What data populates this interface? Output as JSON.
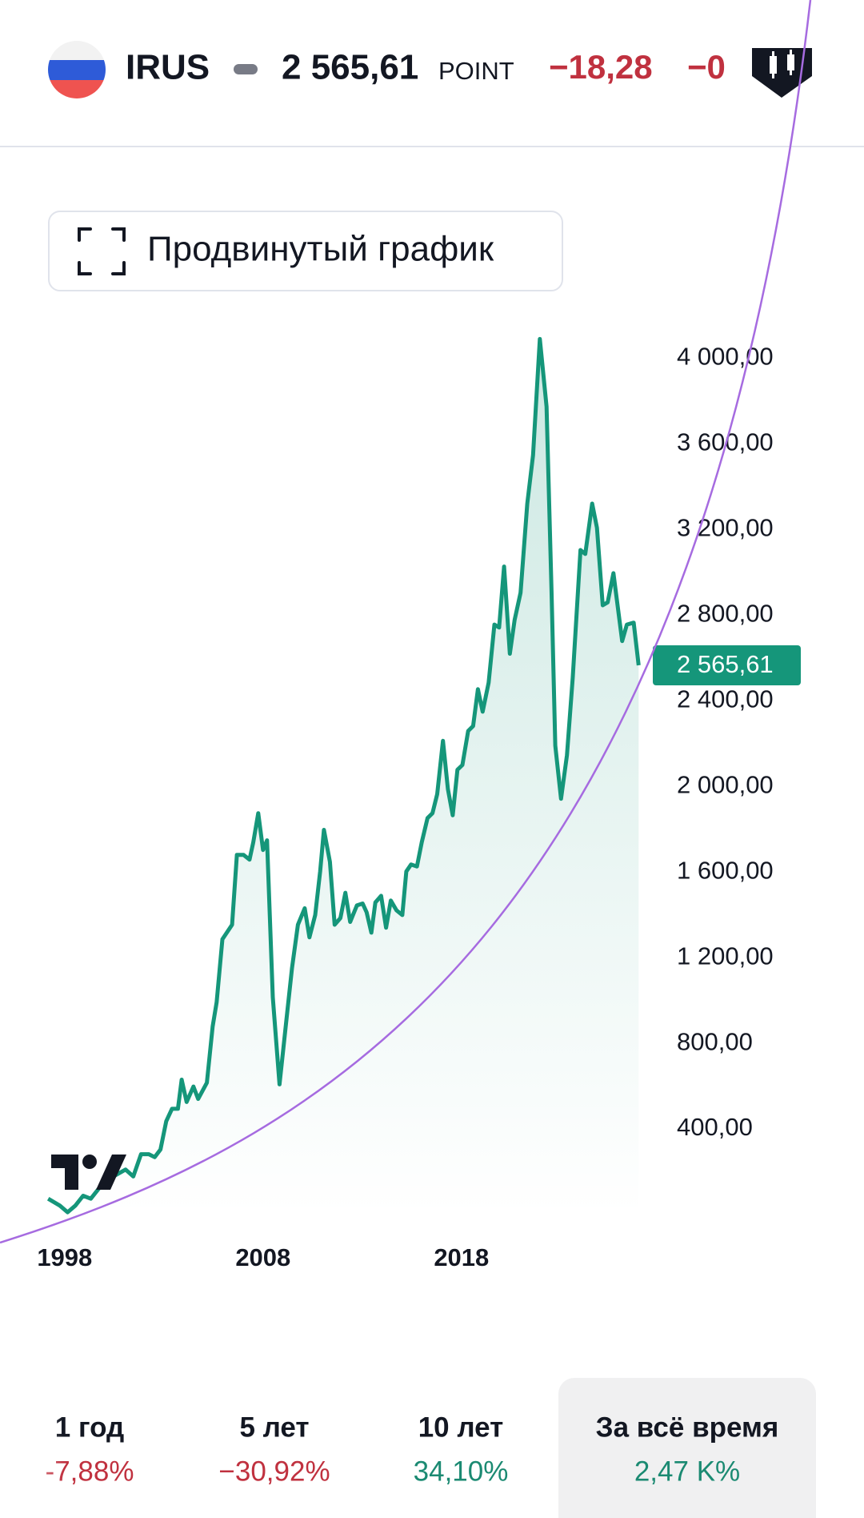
{
  "header": {
    "ticker": "IRUS",
    "unit": "POINT",
    "change": "−18,28",
    "change_pct": "−0"
  },
  "button": "Продвинутый график",
  "chart_data": {
    "type": "line",
    "color": "#15967a",
    "x": [
      1997.17,
      1997.76,
      1998.15,
      1998.54,
      1998.93,
      1999.32,
      1999.71,
      2000.2,
      2001.07,
      2001.46,
      2001.85,
      2002.24,
      2002.54,
      2002.83,
      2003.12,
      2003.41,
      2003.71,
      2003.9,
      2004.15,
      2004.49,
      2004.73,
      2005.17,
      2005.46,
      2005.66,
      2005.95,
      2006.44,
      2006.68,
      2007.02,
      2007.32,
      2007.51,
      2007.76,
      2008.0,
      2008.2,
      2008.49,
      2008.83,
      2009.17,
      2009.46,
      2009.76,
      2010.1,
      2010.34,
      2010.63,
      2010.88,
      2011.07,
      2011.37,
      2011.61,
      2011.9,
      2012.15,
      2012.39,
      2012.73,
      2013.02,
      2013.22,
      2013.46,
      2013.66,
      2013.95,
      2014.2,
      2014.44,
      2014.73,
      2015.02,
      2015.22,
      2015.46,
      2015.76,
      2016.0,
      2016.29,
      2016.54,
      2016.78,
      2017.07,
      2017.32,
      2017.56,
      2017.8,
      2018.05,
      2018.34,
      2018.59,
      2018.83,
      2019.07,
      2019.37,
      2019.66,
      2019.9,
      2020.15,
      2020.44,
      2020.68,
      2020.98,
      2021.32,
      2021.61,
      2021.95,
      2022.29,
      2022.54,
      2022.73,
      2023.02,
      2023.32,
      2023.61,
      2024.0,
      2024.24,
      2024.59,
      2024.83,
      2025.12,
      2025.37,
      2025.66,
      2026.1,
      2026.34,
      2026.68,
      2026.93
    ],
    "values": [
      74,
      42,
      11,
      42,
      88,
      74,
      120,
      165,
      210,
      178,
      282,
      282,
      268,
      304,
      436,
      494,
      494,
      630,
      526,
      598,
      540,
      616,
      878,
      992,
      1286,
      1354,
      1680,
      1680,
      1658,
      1739,
      1875,
      1703,
      1748,
      1015,
      608,
      902,
      1151,
      1354,
      1431,
      1295,
      1399,
      1603,
      1797,
      1648,
      1354,
      1385,
      1503,
      1367,
      1444,
      1453,
      1412,
      1317,
      1458,
      1489,
      1340,
      1467,
      1421,
      1399,
      1603,
      1635,
      1626,
      1739,
      1852,
      1875,
      1964,
      2213,
      1987,
      1865,
      2078,
      2100,
      2259,
      2282,
      2454,
      2349,
      2485,
      2756,
      2742,
      3027,
      2620,
      2778,
      2905,
      3321,
      3547,
      4090,
      3774,
      2914,
      2191,
      1942,
      2146,
      2507,
      3104,
      3086,
      3321,
      3208,
      2846,
      2860,
      2996,
      2679,
      2756,
      2765,
      2566
    ],
    "xlim": [
      1997,
      2027
    ],
    "xticks": [
      1998,
      2008,
      2018
    ],
    "ylim": [
      0,
      4200
    ],
    "yticks": [
      {
        "value": 400,
        "label": "400,00"
      },
      {
        "value": 800,
        "label": "800,00"
      },
      {
        "value": 1200,
        "label": "1 200,00"
      },
      {
        "value": 1600,
        "label": "1 600,00"
      },
      {
        "value": 2000,
        "label": "2 000,00"
      },
      {
        "value": 2400,
        "label": "2 400,00"
      },
      {
        "value": 2800,
        "label": "2 800,00"
      },
      {
        "value": 3200,
        "label": "3 200,00"
      },
      {
        "value": 3600,
        "label": "3 600,00"
      },
      {
        "value": 4000,
        "label": "4 000,00"
      }
    ],
    "current_price": {
      "value": 2565.61,
      "label": "2 565,61"
    }
  },
  "periods": [
    {
      "label": "1 год",
      "change": "-7,88%"
    },
    {
      "label": "5 лет",
      "change": "−30,92%"
    },
    {
      "label": "10 лет",
      "change": "34,10%"
    },
    {
      "label": "За всё время",
      "change": "2,47 K%"
    }
  ]
}
